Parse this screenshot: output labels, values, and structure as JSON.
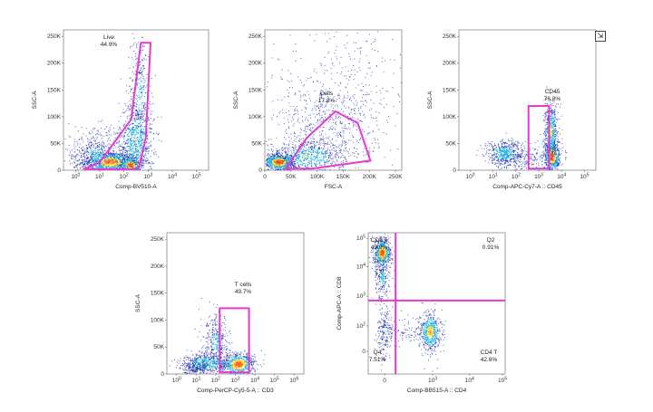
{
  "colors": {
    "gate": "#e23ad6",
    "density_low": "#1f2fa8",
    "density_mid": "#19b6e0",
    "density_high": "#ffd21e",
    "density_peak": "#ff5a1a"
  },
  "chart_data": [
    {
      "type": "scatter",
      "title": "",
      "xlabel": "Comp-BV510-A",
      "ylabel": "SSC-A",
      "x_scale": "log",
      "x_ticks": [
        "10^0",
        "10^1",
        "10^2",
        "10^3",
        "10^4",
        "10^5"
      ],
      "y_ticks": [
        "0",
        "50K",
        "100K",
        "150K",
        "200K",
        "250K"
      ],
      "ylim": [
        0,
        262144
      ],
      "gates": [
        {
          "name": "Live",
          "value": "44.9%",
          "shape": "polygon",
          "points": [
            [
              0.35,
              2000
            ],
            [
              1.0,
              15000
            ],
            [
              2.3,
              95000
            ],
            [
              2.7,
              238000
            ],
            [
              3.1,
              238000
            ],
            [
              2.9,
              60000
            ],
            [
              2.6,
              2000
            ]
          ]
        }
      ]
    },
    {
      "type": "scatter",
      "title": "",
      "xlabel": "FSC-A",
      "ylabel": "SSC-A",
      "x_scale": "linear",
      "x_ticks": [
        "0",
        "50K",
        "100K",
        "150K",
        "200K",
        "250K"
      ],
      "y_ticks": [
        "0",
        "50K",
        "100K",
        "150K",
        "200K",
        "250K"
      ],
      "xlim": [
        0,
        262144
      ],
      "ylim": [
        0,
        262144
      ],
      "gates": [
        {
          "name": "Cells",
          "value": "17.8%",
          "shape": "polygon",
          "points": [
            [
              40000,
              3000
            ],
            [
              80000,
              60000
            ],
            [
              135000,
              110000
            ],
            [
              178000,
              88000
            ],
            [
              202000,
              18000
            ],
            [
              90000,
              3000
            ]
          ]
        }
      ]
    },
    {
      "type": "scatter",
      "title": "",
      "xlabel": "Comp-APC-Cy7-A :: CD45",
      "ylabel": "SSC-A",
      "x_scale": "log",
      "x_ticks": [
        "10^0",
        "10^1",
        "10^2",
        "10^3",
        "10^4",
        "10^5"
      ],
      "y_ticks": [
        "0",
        "50K",
        "100K",
        "150K",
        "200K",
        "250K"
      ],
      "ylim": [
        0,
        262144
      ],
      "gates": [
        {
          "name": "CD45",
          "value": "76.8%",
          "shape": "rect",
          "points": [
            [
              2.55,
              3000
            ],
            [
              3.45,
              120000
            ]
          ]
        }
      ]
    },
    {
      "type": "scatter",
      "title": "",
      "xlabel": "Comp-PerCP-Cy5-5-A :: CD3",
      "ylabel": "SSC-A",
      "x_scale": "log",
      "x_ticks": [
        "10^0",
        "10^1",
        "10^2",
        "10^3",
        "10^4",
        "10^5",
        "10^6"
      ],
      "y_ticks": [
        "0",
        "50K",
        "100K",
        "150K",
        "200K",
        "250K"
      ],
      "ylim": [
        0,
        262144
      ],
      "gates": [
        {
          "name": "T cells",
          "value": "49.7%",
          "shape": "rect",
          "points": [
            [
              2.2,
              3000
            ],
            [
              3.7,
              122000
            ]
          ]
        }
      ]
    },
    {
      "type": "scatter",
      "title": "",
      "xlabel": "Comp-BB515-A :: CD4",
      "ylabel": "Comp-APC-A :: CD8",
      "x_scale": "biexponential",
      "y_scale": "biexponential",
      "x_ticks": [
        "0",
        "10^3",
        "10^4",
        "10^5"
      ],
      "y_ticks": [
        "0",
        "10^2",
        "10^3",
        "10^4",
        "10^5"
      ],
      "quadrant_divider": {
        "x": 300,
        "y": 1000
      },
      "quadrants": [
        {
          "name": "CD8 T",
          "value": "49.0%",
          "position": "top-left"
        },
        {
          "name": "Q2",
          "value": "0.91%",
          "position": "top-right"
        },
        {
          "name": "Q4",
          "value": "7.51%",
          "position": "bottom-left"
        },
        {
          "name": "CD4 T",
          "value": "42.6%",
          "position": "bottom-right"
        }
      ]
    }
  ],
  "ui": {
    "expand_icon": "export-arrow-icon",
    "expand_glyph": "⇲"
  }
}
